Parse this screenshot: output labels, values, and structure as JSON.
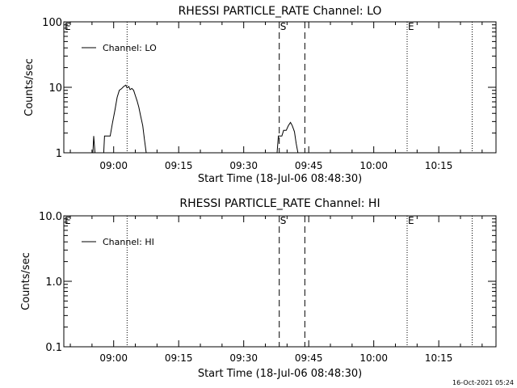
{
  "footer": {
    "timestamp": "16-Oct-2021 05:24"
  },
  "chart_data": [
    {
      "type": "line",
      "title": "RHESSI PARTICLE_RATE Channel: LO",
      "xlabel": "Start Time (18-Jul-06 08:48:30)",
      "ylabel": "Counts/sec",
      "x_tick_labels": [
        "09:00",
        "09:15",
        "09:30",
        "09:45",
        "10:00",
        "10:15"
      ],
      "x_tick_minutes": [
        11.5,
        26.5,
        41.5,
        56.5,
        71.5,
        86.5
      ],
      "x_range_minutes": [
        0,
        99.7
      ],
      "y_scale": "log",
      "ylim": [
        1,
        100
      ],
      "y_tick_labels": [
        "1",
        "10",
        "100"
      ],
      "y_tick_values": [
        1,
        10,
        100
      ],
      "legend": {
        "label": "Channel: LO",
        "position": "top-left"
      },
      "markers": [
        {
          "label": "E",
          "minute": 0,
          "style": "dotted"
        },
        {
          "label": "",
          "minute": 14.6,
          "style": "dotted"
        },
        {
          "label": "S",
          "minute": 49.7,
          "style": "dashed"
        },
        {
          "label": "",
          "minute": 55.6,
          "style": "dashed"
        },
        {
          "label": "E",
          "minute": 79.2,
          "style": "dotted"
        },
        {
          "label": "",
          "minute": 94.2,
          "style": "dotted"
        }
      ],
      "series": [
        {
          "name": "Channel: LO",
          "segments": [
            [
              [
                6.7,
                1
              ],
              [
                6.9,
                1.8
              ],
              [
                7.2,
                1
              ],
              [
                9.2,
                1
              ],
              [
                9.4,
                1.8
              ],
              [
                10.7,
                1.8
              ],
              [
                11.2,
                2.8
              ],
              [
                11.8,
                4.5
              ],
              [
                12.3,
                7
              ],
              [
                12.8,
                9
              ],
              [
                13.3,
                9.5
              ],
              [
                13.8,
                10.3
              ],
              [
                14.3,
                10.8
              ],
              [
                14.6,
                9.8
              ],
              [
                15.0,
                10.3
              ],
              [
                15.3,
                9.2
              ],
              [
                15.7,
                9.6
              ],
              [
                16.1,
                9.0
              ],
              [
                16.5,
                7.5
              ],
              [
                16.9,
                6.2
              ],
              [
                17.3,
                5.0
              ],
              [
                17.7,
                3.7
              ],
              [
                18.2,
                2.6
              ],
              [
                18.6,
                1.6
              ],
              [
                19.0,
                1
              ]
            ],
            [
              [
                49.2,
                1
              ],
              [
                49.5,
                1.8
              ],
              [
                50.3,
                1.8
              ],
              [
                50.7,
                2.2
              ],
              [
                51.3,
                2.2
              ],
              [
                51.8,
                2.6
              ],
              [
                52.3,
                2.9
              ],
              [
                52.7,
                2.6
              ],
              [
                53.2,
                2.1
              ],
              [
                53.6,
                1.4
              ],
              [
                54.0,
                1
              ]
            ]
          ]
        }
      ]
    },
    {
      "type": "line",
      "title": "RHESSI PARTICLE_RATE Channel: HI",
      "xlabel": "Start Time (18-Jul-06 08:48:30)",
      "ylabel": "Counts/sec",
      "x_tick_labels": [
        "09:00",
        "09:15",
        "09:30",
        "09:45",
        "10:00",
        "10:15"
      ],
      "x_tick_minutes": [
        11.5,
        26.5,
        41.5,
        56.5,
        71.5,
        86.5
      ],
      "x_range_minutes": [
        0,
        99.7
      ],
      "y_scale": "log",
      "ylim": [
        0.1,
        10
      ],
      "y_tick_labels": [
        "0.1",
        "1.0",
        "10.0"
      ],
      "y_tick_values": [
        0.1,
        1,
        10
      ],
      "legend": {
        "label": "Channel: HI",
        "position": "top-left"
      },
      "markers": [
        {
          "label": "E",
          "minute": 0,
          "style": "dotted"
        },
        {
          "label": "",
          "minute": 14.6,
          "style": "dotted"
        },
        {
          "label": "S",
          "minute": 49.7,
          "style": "dashed"
        },
        {
          "label": "",
          "minute": 55.6,
          "style": "dashed"
        },
        {
          "label": "E",
          "minute": 79.2,
          "style": "dotted"
        },
        {
          "label": "",
          "minute": 94.2,
          "style": "dotted"
        }
      ],
      "series": [
        {
          "name": "Channel: HI",
          "segments": []
        }
      ]
    }
  ]
}
